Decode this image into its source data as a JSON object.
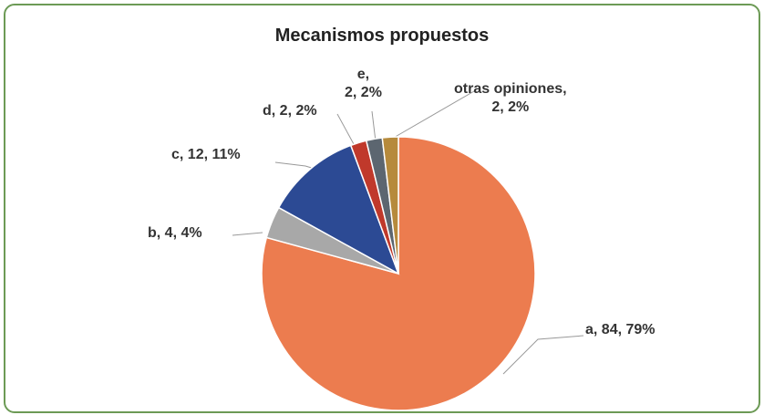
{
  "chart_data": {
    "type": "pie",
    "title": "Mecanismos propuestos",
    "values": [
      84,
      4,
      12,
      2,
      2,
      2
    ],
    "value_labels": [
      "a, 84, 79%",
      "b, 4, 4%",
      "c, 12, 11%",
      "d, 2, 2%",
      "e,\n2, 2%",
      "otras opiniones,\n2, 2%"
    ],
    "colors": [
      "#ec7c4f",
      "#a8a8a8",
      "#2c4a94",
      "#c0392b",
      "#5c6670",
      "#b68a3c"
    ]
  }
}
